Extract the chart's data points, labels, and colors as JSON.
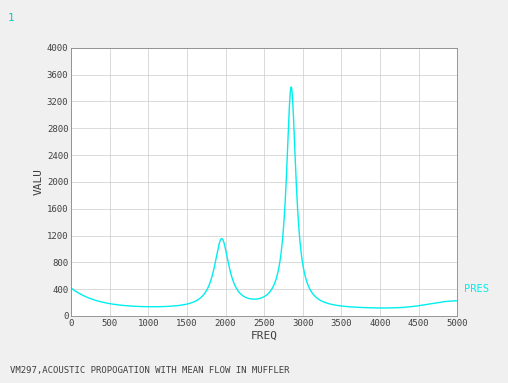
{
  "title": "",
  "xlabel": "FREQ",
  "ylabel": "VALU",
  "legend_label": "PRES",
  "legend_color": "#00EEEE",
  "line_color": "#00EEEE",
  "fig_bg_color": "#F0F0F0",
  "plot_bg_color": "#FFFFFF",
  "grid_color": "#CCCCCC",
  "text_color": "#404040",
  "xlim": [
    0,
    5000
  ],
  "ylim": [
    0,
    4000
  ],
  "xticks": [
    0,
    500,
    1000,
    1500,
    2000,
    2500,
    3000,
    3500,
    4000,
    4500,
    5000
  ],
  "yticks": [
    0,
    400,
    800,
    1200,
    1600,
    2000,
    2400,
    2800,
    3200,
    3600,
    4000
  ],
  "corner_label": "1",
  "bottom_label": "VM297,ACOUSTIC PROPOGATION WITH MEAN FLOW IN MUFFLER"
}
